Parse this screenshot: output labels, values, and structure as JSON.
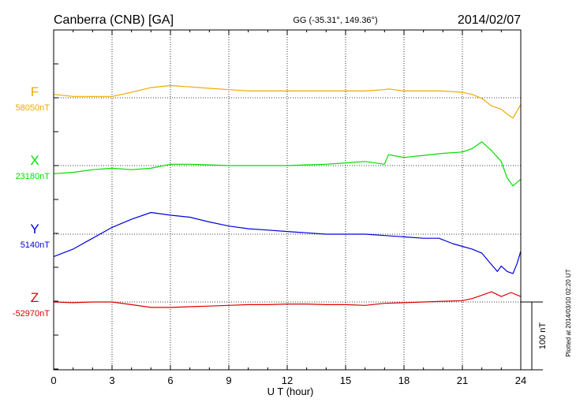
{
  "header": {
    "station": "Canberra (CNB)  [GA]",
    "coords": "GG (-35.31°, 149.36°)",
    "date": "2014/02/07"
  },
  "side_note": "Plotted at 2014/03/10 02:20 UT",
  "scale_label": "100 nT",
  "chart_data": {
    "type": "line",
    "xlabel": "U T (hour)",
    "xlim": [
      0,
      24
    ],
    "xticks": [
      "0",
      "3",
      "6",
      "9",
      "12",
      "15",
      "18",
      "21",
      "24"
    ],
    "grid": true,
    "scale_bar_nT": 100,
    "series": [
      {
        "name": "F",
        "baseline_label": "58050nT",
        "color": "#f2a900",
        "x": [
          0,
          1,
          2,
          3,
          4,
          5,
          6,
          7,
          8,
          9,
          10,
          11,
          12,
          13,
          14,
          15,
          16,
          17,
          17.2,
          18,
          19,
          20,
          21,
          21.5,
          22,
          22.5,
          23,
          23.3,
          23.6,
          24
        ],
        "values": [
          58055,
          58052,
          58052,
          58052,
          58058,
          58065,
          58068,
          58066,
          58064,
          58062,
          58060,
          58060,
          58060,
          58060,
          58060,
          58060,
          58060,
          58062,
          58063,
          58060,
          58060,
          58060,
          58058,
          58055,
          58049,
          58038,
          58033,
          58026,
          58020,
          58040
        ]
      },
      {
        "name": "X",
        "baseline_label": "23180nT",
        "color": "#00dd00",
        "x": [
          0,
          1,
          2,
          3,
          4,
          5,
          6,
          7,
          8,
          9,
          10,
          11,
          12,
          13,
          14,
          15,
          16,
          17,
          17.2,
          18,
          19,
          20,
          21,
          21.5,
          22,
          22.5,
          23,
          23.3,
          23.6,
          24
        ],
        "values": [
          23168,
          23170,
          23174,
          23176,
          23174,
          23176,
          23182,
          23182,
          23181,
          23180,
          23180,
          23180,
          23180,
          23181,
          23182,
          23184,
          23186,
          23182,
          23196,
          23192,
          23195,
          23198,
          23200,
          23205,
          23215,
          23202,
          23186,
          23162,
          23150,
          23160
        ]
      },
      {
        "name": "Y",
        "baseline_label": "5140nT",
        "color": "#0000dd",
        "x": [
          0,
          1,
          2,
          3,
          4,
          5,
          6,
          7,
          8,
          9,
          10,
          11,
          12,
          13,
          14,
          15,
          16,
          17,
          18,
          19,
          19.8,
          20.5,
          21,
          21.5,
          22,
          22.5,
          22.8,
          23,
          23.3,
          23.6,
          23.8,
          24
        ],
        "values": [
          5107,
          5118,
          5134,
          5150,
          5162,
          5172,
          5168,
          5165,
          5158,
          5152,
          5148,
          5146,
          5144,
          5142,
          5140,
          5140,
          5140,
          5138,
          5136,
          5134,
          5134,
          5126,
          5122,
          5118,
          5112,
          5095,
          5085,
          5093,
          5085,
          5082,
          5096,
          5115
        ]
      },
      {
        "name": "Z",
        "baseline_label": "-52970nT",
        "color": "#dd0000",
        "x": [
          0,
          1,
          2,
          3,
          4,
          5,
          6,
          7,
          8,
          9,
          10,
          11,
          12,
          13,
          14,
          15,
          16,
          17,
          18,
          19,
          20,
          21,
          21.5,
          22,
          22.5,
          23,
          23.5,
          24
        ],
        "values": [
          -52970,
          -52971,
          -52970,
          -52970,
          -52974,
          -52978,
          -52978,
          -52977,
          -52976,
          -52975,
          -52974,
          -52974,
          -52973,
          -52973,
          -52974,
          -52974,
          -52975,
          -52972,
          -52971,
          -52970,
          -52969,
          -52968,
          -52965,
          -52960,
          -52955,
          -52962,
          -52956,
          -52962
        ]
      }
    ]
  }
}
